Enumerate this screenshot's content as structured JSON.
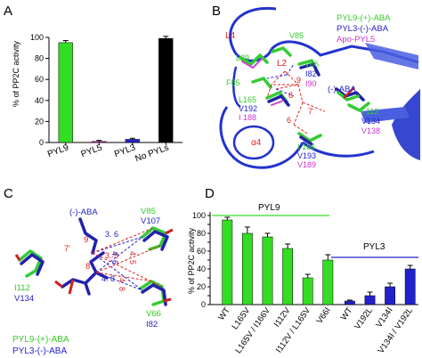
{
  "panels": {
    "a": "A",
    "b": "B",
    "c": "C",
    "d": "D"
  },
  "colors": {
    "green": "#33dd22",
    "blue": "#2222cc",
    "magenta": "#cc33cc",
    "black": "#000000",
    "red": "#e02020",
    "cartoon": "#2233cc"
  },
  "chart_data": [
    {
      "type": "bar",
      "ylabel": "% of PP2C activity",
      "ylim": [
        0,
        100
      ],
      "yticks": [
        0,
        20,
        40,
        60,
        80,
        100
      ],
      "categories": [
        "PYL9",
        "PYL5",
        "PYL3",
        "No PYLs"
      ],
      "values": [
        95,
        1,
        3,
        99
      ],
      "errors": [
        2,
        1,
        1,
        2
      ],
      "bar_colors": [
        "#33dd22",
        "#cc33cc",
        "#2222cc",
        "#000000"
      ]
    },
    {
      "type": "bar",
      "ylabel": "% of PP2C activity",
      "ylim": [
        0,
        100
      ],
      "yticks": [
        0,
        10,
        20,
        30,
        40,
        50,
        60,
        70,
        80,
        90,
        100
      ],
      "groups": [
        {
          "name": "PYL9",
          "color": "#33dd22"
        },
        {
          "name": "PYL3",
          "color": "#2222cc"
        }
      ],
      "categories": [
        "WT",
        "L165V",
        "L165V / I166V",
        "I112V",
        "I112V / L165V",
        "V66I",
        "WT",
        "V192L",
        "V134I",
        "V134I / V192L"
      ],
      "values": [
        95,
        80,
        76,
        63,
        30,
        50,
        4,
        10,
        20,
        40
      ],
      "errors": [
        3,
        7,
        4,
        5,
        4,
        6,
        1,
        4,
        4,
        4
      ],
      "bar_groups": [
        0,
        0,
        0,
        0,
        0,
        0,
        1,
        1,
        1,
        1
      ]
    }
  ],
  "panel_b": {
    "legend": [
      "PYL9-(+)-ABA",
      "PYL3-(-)-ABA",
      "Apo-PYL5"
    ],
    "labels": {
      "l4": "L4",
      "l2": "L2",
      "v85": "V85",
      "l89": "L89",
      "v66": "V66",
      "i82": "I82",
      "i90": "I90",
      "f65": "F65",
      "aba": "(-)-ABA",
      "l165": "L165",
      "v192": "V192",
      "i188": "I 188",
      "n9": "9",
      "n8": "8",
      "n7": "7'",
      "n6": "6",
      "i112": "I 112",
      "v134": "V134",
      "v138": "V138",
      "a4": "α4",
      "i166": "I 166",
      "v193": "V193",
      "v189": "V189"
    }
  },
  "panel_c": {
    "aba": "(-)-ABA",
    "v85": "V85",
    "v107": "V107",
    "i112": "I112",
    "v134": "V134",
    "v66": "V66",
    "i82": "I82",
    "n7": "7'",
    "n9": "9",
    "n8": "8",
    "d36": "3. 6",
    "d35": "3. 5",
    "d45": "4. 5",
    "d46": "4. 6",
    "d48a": "4. 8",
    "d48b": "4. 8",
    "legend": [
      "PYL9-(+)-ABA",
      "PYL3-(-)-ABA"
    ]
  }
}
